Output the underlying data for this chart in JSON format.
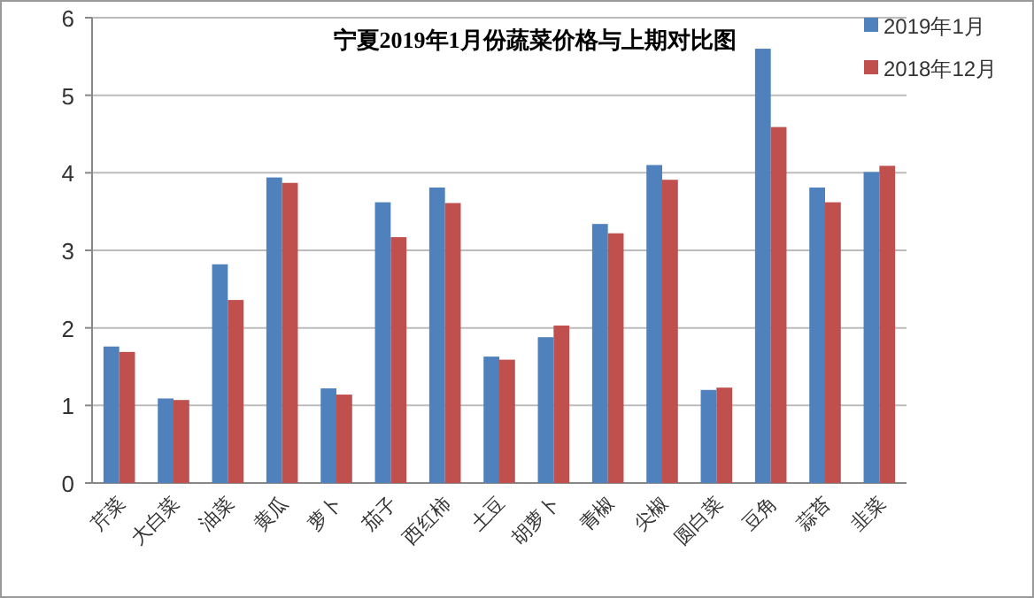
{
  "chart_data": {
    "type": "bar",
    "title": "宁夏2019年1月份蔬菜价格与上期对比图",
    "categories": [
      "芹菜",
      "大白菜",
      "油菜",
      "黄瓜",
      "萝卜",
      "茄子",
      "西红柿",
      "土豆",
      "胡萝卜",
      "青椒",
      "尖椒",
      "圆白菜",
      "豆角",
      "蒜苔",
      "韭菜"
    ],
    "series": [
      {
        "name": "2019年1月",
        "color": "#4f81bd",
        "values": [
          1.76,
          1.09,
          2.82,
          3.94,
          1.22,
          3.62,
          3.81,
          1.63,
          1.88,
          3.34,
          4.1,
          1.2,
          5.6,
          3.81,
          4.01
        ]
      },
      {
        "name": "2018年12月",
        "color": "#c0504d",
        "values": [
          1.69,
          1.07,
          2.36,
          3.87,
          1.14,
          3.17,
          3.61,
          1.59,
          2.03,
          3.22,
          3.91,
          1.23,
          4.59,
          3.62,
          4.09
        ]
      }
    ],
    "ylim": [
      0,
      6
    ],
    "yticks": [
      0,
      1,
      2,
      3,
      4,
      5,
      6
    ],
    "grid": "y",
    "legend": "top right"
  }
}
